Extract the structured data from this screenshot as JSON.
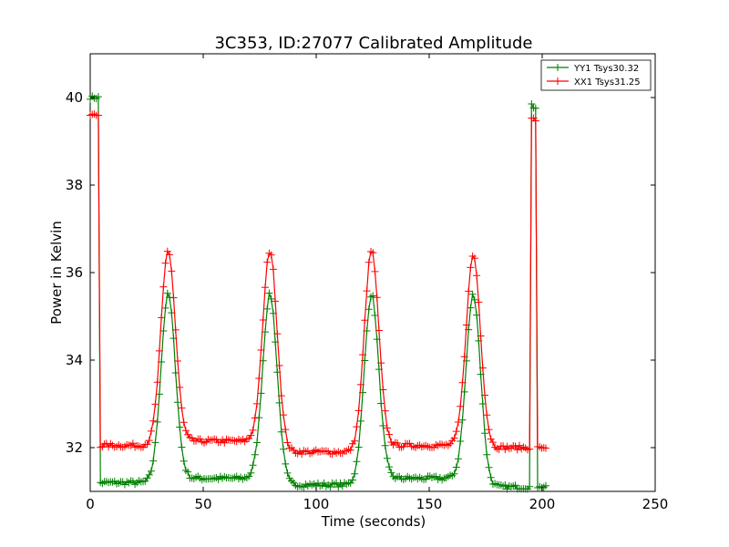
{
  "chart_data": {
    "type": "line",
    "title": "3C353, ID:27077 Calibrated Amplitude",
    "xlabel": "Time (seconds)",
    "ylabel": "Power in Kelvin",
    "xlim": [
      0,
      250
    ],
    "ylim": [
      31,
      41
    ],
    "xticks": [
      0,
      50,
      100,
      150,
      200,
      250
    ],
    "yticks": [
      32,
      34,
      36,
      38,
      40
    ],
    "grid": false,
    "legend_position": "top-right",
    "series": [
      {
        "name": "YY1 Tsys30.32",
        "color": "#008000",
        "marker": "+",
        "base_segments": [
          {
            "x0": 5,
            "x1": 28,
            "y": 31.2
          },
          {
            "x0": 43,
            "x1": 73,
            "y": 31.3
          },
          {
            "x0": 88,
            "x1": 117,
            "y": 31.15
          },
          {
            "x0": 132,
            "x1": 161,
            "y": 31.3
          },
          {
            "x0": 176,
            "x1": 194,
            "y": 31.1
          }
        ],
        "peaks": [
          {
            "x": 34.5,
            "y": 35.5
          },
          {
            "x": 79.5,
            "y": 35.5
          },
          {
            "x": 124.5,
            "y": 35.5
          },
          {
            "x": 169.5,
            "y": 35.5
          }
        ],
        "start_level": 40.0,
        "start_range": [
          0,
          4.5
        ],
        "end_level": 39.8,
        "end_range": [
          194.5,
          198
        ],
        "tail_level": 31.1,
        "tail_range": [
          198,
          202
        ]
      },
      {
        "name": "XX1 Tsys31.25",
        "color": "#ff0000",
        "marker": "+",
        "base_segments": [
          {
            "x0": 5,
            "x1": 28,
            "y": 32.05
          },
          {
            "x0": 43,
            "x1": 73,
            "y": 32.15
          },
          {
            "x0": 88,
            "x1": 117,
            "y": 31.9
          },
          {
            "x0": 132,
            "x1": 161,
            "y": 32.05
          },
          {
            "x0": 176,
            "x1": 194,
            "y": 32.0
          }
        ],
        "peaks": [
          {
            "x": 34.5,
            "y": 36.5
          },
          {
            "x": 79.5,
            "y": 36.5
          },
          {
            "x": 124.5,
            "y": 36.5
          },
          {
            "x": 169.5,
            "y": 36.4
          }
        ],
        "start_level": 39.6,
        "start_range": [
          0,
          4.5
        ],
        "end_level": 39.5,
        "end_range": [
          194.5,
          198
        ],
        "tail_level": 32.0,
        "tail_range": [
          198,
          202
        ]
      }
    ]
  }
}
